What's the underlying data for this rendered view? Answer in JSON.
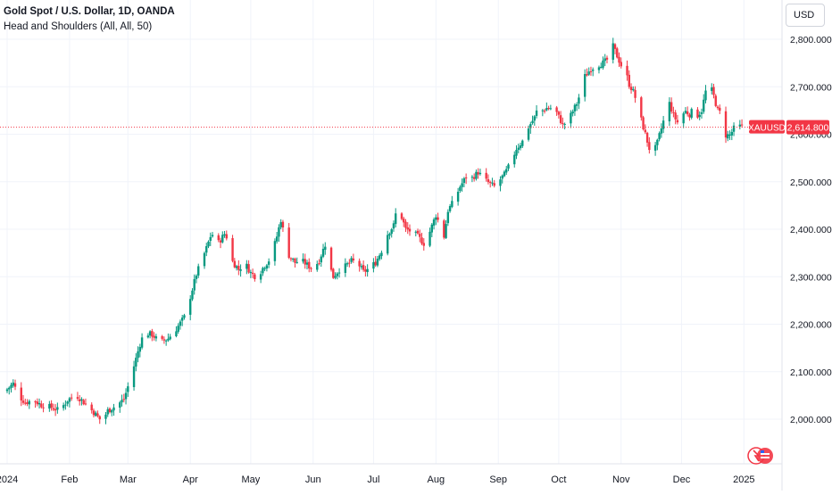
{
  "header": {
    "title": "Gold Spot / U.S. Dollar, 1D, OANDA",
    "indicator": "Head and Shoulders (All, All, 50)"
  },
  "currency_button": "USD",
  "price_tag": {
    "symbol": "XAUUSD",
    "value": "2,614.800",
    "color": "#f23645"
  },
  "colors": {
    "up": "#089981",
    "down": "#f23645",
    "grid": "#f0f3fa",
    "axis_text": "#131722"
  },
  "icons": [
    "flag-icon"
  ],
  "chart_data": {
    "type": "candlestick",
    "title": "Gold Spot / U.S. Dollar, 1D, OANDA",
    "ylim": [
      1920,
      2890
    ],
    "y_ticks": [
      2000,
      2100,
      2200,
      2300,
      2400,
      2500,
      2600,
      2700,
      2800
    ],
    "y_tick_labels": [
      "2,000.000",
      "2,100.000",
      "2,200.000",
      "2,300.000",
      "2,400.000",
      "2,500.000",
      "2,600.000",
      "2,700.000",
      "2,800.000"
    ],
    "x_ticks": [
      {
        "label": "2024",
        "day": 0
      },
      {
        "label": "Feb",
        "day": 31
      },
      {
        "label": "Mar",
        "day": 60
      },
      {
        "label": "Apr",
        "day": 91
      },
      {
        "label": "May",
        "day": 121
      },
      {
        "label": "Jun",
        "day": 152
      },
      {
        "label": "Jul",
        "day": 182
      },
      {
        "label": "Aug",
        "day": 213
      },
      {
        "label": "Sep",
        "day": 244
      },
      {
        "label": "Oct",
        "day": 274
      },
      {
        "label": "Nov",
        "day": 305
      },
      {
        "label": "Dec",
        "day": 335
      },
      {
        "label": "2025",
        "day": 366
      }
    ],
    "last_price": 2614.8,
    "close_path": [
      [
        0,
        2063
      ],
      [
        3,
        2075
      ],
      [
        6,
        2048
      ],
      [
        9,
        2035
      ],
      [
        13,
        2040
      ],
      [
        17,
        2030
      ],
      [
        22,
        2025
      ],
      [
        26,
        2018
      ],
      [
        30,
        2040
      ],
      [
        34,
        2052
      ],
      [
        39,
        2032
      ],
      [
        44,
        2010
      ],
      [
        47,
        1995
      ],
      [
        50,
        2018
      ],
      [
        54,
        2028
      ],
      [
        58,
        2042
      ],
      [
        61,
        2082
      ],
      [
        63,
        2112
      ],
      [
        66,
        2158
      ],
      [
        68,
        2182
      ],
      [
        72,
        2178
      ],
      [
        76,
        2162
      ],
      [
        80,
        2170
      ],
      [
        84,
        2190
      ],
      [
        88,
        2215
      ],
      [
        91,
        2258
      ],
      [
        94,
        2305
      ],
      [
        97,
        2338
      ],
      [
        99,
        2360
      ],
      [
        101,
        2385
      ],
      [
        103,
        2392
      ],
      [
        105,
        2372
      ],
      [
        108,
        2390
      ],
      [
        110,
        2378
      ],
      [
        112,
        2332
      ],
      [
        115,
        2315
      ],
      [
        118,
        2330
      ],
      [
        121,
        2308
      ],
      [
        124,
        2298
      ],
      [
        127,
        2318
      ],
      [
        131,
        2340
      ],
      [
        134,
        2385
      ],
      [
        136,
        2420
      ],
      [
        138,
        2380
      ],
      [
        140,
        2345
      ],
      [
        143,
        2330
      ],
      [
        146,
        2335
      ],
      [
        149,
        2325
      ],
      [
        152,
        2315
      ],
      [
        155,
        2335
      ],
      [
        158,
        2368
      ],
      [
        160,
        2325
      ],
      [
        162,
        2300
      ],
      [
        165,
        2315
      ],
      [
        168,
        2322
      ],
      [
        171,
        2333
      ],
      [
        174,
        2330
      ],
      [
        177,
        2310
      ],
      [
        180,
        2318
      ],
      [
        183,
        2330
      ],
      [
        186,
        2355
      ],
      [
        189,
        2390
      ],
      [
        192,
        2408
      ],
      [
        194,
        2455
      ],
      [
        196,
        2425
      ],
      [
        198,
        2400
      ],
      [
        201,
        2395
      ],
      [
        204,
        2385
      ],
      [
        207,
        2370
      ],
      [
        210,
        2395
      ],
      [
        213,
        2430
      ],
      [
        215,
        2408
      ],
      [
        217,
        2385
      ],
      [
        219,
        2440
      ],
      [
        222,
        2460
      ],
      [
        225,
        2490
      ],
      [
        228,
        2510
      ],
      [
        231,
        2508
      ],
      [
        234,
        2520
      ],
      [
        237,
        2505
      ],
      [
        240,
        2495
      ],
      [
        242,
        2490
      ],
      [
        244,
        2500
      ],
      [
        247,
        2515
      ],
      [
        250,
        2538
      ],
      [
        253,
        2570
      ],
      [
        256,
        2585
      ],
      [
        259,
        2615
      ],
      [
        262,
        2635
      ],
      [
        264,
        2660
      ],
      [
        266,
        2650
      ],
      [
        268,
        2655
      ],
      [
        270,
        2655
      ],
      [
        273,
        2645
      ],
      [
        276,
        2620
      ],
      [
        278,
        2625
      ],
      [
        280,
        2640
      ],
      [
        283,
        2665
      ],
      [
        285,
        2690
      ],
      [
        287,
        2722
      ],
      [
        290,
        2738
      ],
      [
        293,
        2745
      ],
      [
        296,
        2750
      ],
      [
        299,
        2760
      ],
      [
        301,
        2785
      ],
      [
        303,
        2765
      ],
      [
        305,
        2745
      ],
      [
        307,
        2735
      ],
      [
        309,
        2705
      ],
      [
        311,
        2690
      ],
      [
        313,
        2665
      ],
      [
        315,
        2630
      ],
      [
        317,
        2600
      ],
      [
        319,
        2570
      ],
      [
        321,
        2560
      ],
      [
        323,
        2582
      ],
      [
        325,
        2612
      ],
      [
        327,
        2642
      ],
      [
        329,
        2665
      ],
      [
        331,
        2640
      ],
      [
        333,
        2625
      ],
      [
        335,
        2640
      ],
      [
        337,
        2648
      ],
      [
        339,
        2642
      ],
      [
        341,
        2652
      ],
      [
        343,
        2640
      ],
      [
        345,
        2650
      ],
      [
        347,
        2690
      ],
      [
        349,
        2705
      ],
      [
        351,
        2680
      ],
      [
        353,
        2650
      ],
      [
        355,
        2642
      ],
      [
        357,
        2598
      ],
      [
        359,
        2598
      ],
      [
        361,
        2612
      ],
      [
        363,
        2618
      ],
      [
        365,
        2614.8
      ]
    ]
  }
}
